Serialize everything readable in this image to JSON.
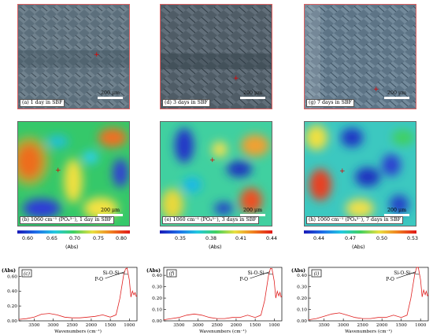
{
  "micrographs": [
    {
      "caption": "(a) 1 day in SBF",
      "scale": "200 μm"
    },
    {
      "caption": "(d) 3 days in SBF",
      "scale": "200 μm"
    },
    {
      "caption": "(g) 7 days in SBF",
      "scale": "200 μm"
    }
  ],
  "maps": [
    {
      "caption": "(b) 1060 cm⁻¹ (PO₄³⁻), 1 day in SBF",
      "scale": "200 μm",
      "colorbar": {
        "ticks": [
          "0.60",
          "0.65",
          "0.70",
          "0.75",
          "0.80"
        ],
        "unit": "(Abs)"
      }
    },
    {
      "caption": "(e) 1060 cm⁻¹ (PO₄³⁻), 3 days in SBF",
      "scale": "200 μm",
      "colorbar": {
        "ticks": [
          "0.35",
          "0.38",
          "0.41",
          "0.44"
        ],
        "unit": "(Abs)"
      }
    },
    {
      "caption": "(h) 1060 cm⁻¹ (PO₄³⁻), 7 days in SBF",
      "scale": "200 μm",
      "colorbar": {
        "ticks": [
          "0.44",
          "0.47",
          "0.50",
          "0.53"
        ],
        "unit": "(Abs)"
      }
    }
  ],
  "chart_data": [
    {
      "type": "line",
      "panel": "(c)",
      "ylabel": "(Abs)",
      "xlabel": "Wavenumbers (cm⁻¹)",
      "xticks": [
        "3500",
        "3000",
        "2500",
        "2000",
        "1500",
        "1000"
      ],
      "yticks": [
        "0.60",
        "0.40",
        "0.20",
        "0.00"
      ],
      "xlim": [
        3900,
        800
      ],
      "ylim": [
        0,
        0.72
      ],
      "annotations": [
        "Si-O-Si",
        "P-O"
      ],
      "series": [
        {
          "x": [
            3900,
            3700,
            3500,
            3300,
            3100,
            2900,
            2700,
            2500,
            2300,
            2100,
            1900,
            1700,
            1500,
            1350,
            1250,
            1150,
            1100,
            1060,
            1000,
            960,
            920,
            880,
            850,
            820,
            800
          ],
          "y": [
            0.02,
            0.03,
            0.05,
            0.09,
            0.1,
            0.08,
            0.05,
            0.04,
            0.04,
            0.05,
            0.06,
            0.08,
            0.05,
            0.08,
            0.3,
            0.62,
            0.7,
            0.71,
            0.55,
            0.32,
            0.4,
            0.35,
            0.38,
            0.33,
            0.34
          ]
        }
      ]
    },
    {
      "type": "line",
      "panel": "(f)",
      "ylabel": "(Abs)",
      "xlabel": "Wavenumbers (cm⁻¹)",
      "xticks": [
        "3500",
        "3000",
        "2500",
        "2000",
        "1500",
        "1000"
      ],
      "yticks": [
        "0.40",
        "0.30",
        "0.20",
        "0.10",
        "0.00"
      ],
      "xlim": [
        3900,
        800
      ],
      "ylim": [
        0,
        0.47
      ],
      "annotations": [
        "Si-O-Si",
        "P-O"
      ],
      "series": [
        {
          "x": [
            3900,
            3700,
            3500,
            3300,
            3100,
            2900,
            2700,
            2500,
            2300,
            2100,
            1900,
            1700,
            1500,
            1350,
            1250,
            1150,
            1100,
            1060,
            1000,
            960,
            920,
            880,
            850,
            820,
            800
          ],
          "y": [
            0.01,
            0.02,
            0.03,
            0.05,
            0.06,
            0.05,
            0.03,
            0.02,
            0.02,
            0.03,
            0.03,
            0.05,
            0.03,
            0.05,
            0.18,
            0.4,
            0.46,
            0.46,
            0.35,
            0.2,
            0.26,
            0.22,
            0.25,
            0.21,
            0.22
          ]
        }
      ]
    },
    {
      "type": "line",
      "panel": "(i)",
      "ylabel": "(Abs)",
      "xlabel": "Wavenumbers (cm⁻¹)",
      "xticks": [
        "3500",
        "3000",
        "2500",
        "2000",
        "1500",
        "1000"
      ],
      "yticks": [
        "0.40",
        "0.30",
        "0.20",
        "0.10",
        "0.00"
      ],
      "xlim": [
        3900,
        800
      ],
      "ylim": [
        0,
        0.47
      ],
      "annotations": [
        "Si-O-Si",
        "P-O"
      ],
      "series": [
        {
          "x": [
            3900,
            3700,
            3500,
            3300,
            3100,
            2900,
            2700,
            2500,
            2300,
            2100,
            1900,
            1700,
            1500,
            1350,
            1250,
            1150,
            1100,
            1060,
            1000,
            960,
            920,
            880,
            850,
            820,
            800
          ],
          "y": [
            0.01,
            0.02,
            0.04,
            0.06,
            0.07,
            0.05,
            0.03,
            0.02,
            0.02,
            0.03,
            0.03,
            0.05,
            0.03,
            0.05,
            0.2,
            0.41,
            0.47,
            0.47,
            0.36,
            0.21,
            0.27,
            0.23,
            0.26,
            0.22,
            0.23
          ]
        }
      ]
    }
  ]
}
